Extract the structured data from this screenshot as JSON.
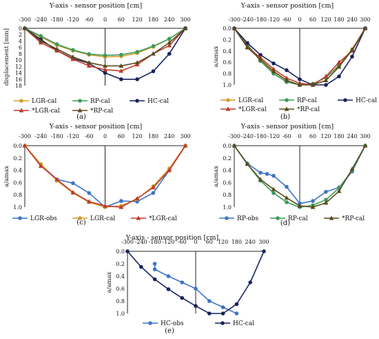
{
  "chart_data": [
    {
      "type": "line",
      "panel_label": "(a)",
      "title": "Y-axis - sensor position [cm]",
      "ylabel": "displacement [mm]",
      "xlabel": "",
      "x_ticks": [
        -300,
        -240,
        -180,
        -120,
        -60,
        0,
        60,
        120,
        180,
        240,
        300
      ],
      "y_ticks": [
        0,
        2,
        4,
        6,
        8,
        10,
        12,
        14,
        16,
        18
      ],
      "xlim": [
        -300,
        300
      ],
      "ylim": [
        0,
        18
      ],
      "y_inverted": true,
      "grid": false,
      "legend_position": "bottom",
      "series": [
        {
          "name": "LGR-cal",
          "color": "#d69d2b",
          "marker": "circle",
          "x": [
            -300,
            -240,
            -180,
            -120,
            -60,
            0,
            60,
            120,
            180,
            240,
            300
          ],
          "y": [
            0,
            2.7,
            5.3,
            7.0,
            8.3,
            9.0,
            8.8,
            7.8,
            5.8,
            3.3,
            0
          ]
        },
        {
          "name": "RP-cal",
          "color": "#3d9a5a",
          "marker": "circle",
          "x": [
            -300,
            -240,
            -180,
            -120,
            -60,
            0,
            60,
            120,
            180,
            240,
            300
          ],
          "y": [
            0,
            2.4,
            5.0,
            6.8,
            8.1,
            8.5,
            8.3,
            7.4,
            5.6,
            3.3,
            0
          ]
        },
        {
          "name": "HC-cal",
          "color": "#17235e",
          "marker": "circle",
          "x": [
            -300,
            -240,
            -180,
            -120,
            -60,
            0,
            60,
            120,
            180,
            240,
            300
          ],
          "y": [
            0,
            3.5,
            7.0,
            9.5,
            11.0,
            14.0,
            16.0,
            16.0,
            13.5,
            8.0,
            0
          ]
        },
        {
          "name": "*LGR-cal",
          "color": "#c0392b",
          "marker": "triangle",
          "x": [
            -300,
            -240,
            -180,
            -120,
            -60,
            0,
            60,
            120,
            180,
            240,
            300
          ],
          "y": [
            0,
            4.5,
            7.0,
            9.7,
            11.8,
            13.0,
            13.4,
            11.4,
            8.0,
            5.4,
            0
          ]
        },
        {
          "name": "*RP-cal",
          "color": "#5a4a1e",
          "marker": "triangle",
          "x": [
            -300,
            -240,
            -180,
            -120,
            -60,
            0,
            60,
            120,
            180,
            240,
            300
          ],
          "y": [
            0,
            4.0,
            6.5,
            9.0,
            10.8,
            11.8,
            11.8,
            10.8,
            8.0,
            4.5,
            0
          ]
        }
      ]
    },
    {
      "type": "line",
      "panel_label": "(b)",
      "title": "Y-axis - sensor position [cm]",
      "ylabel": "a/amax",
      "xlabel": "",
      "x_ticks": [
        -300,
        -240,
        -180,
        -120,
        -60,
        0,
        60,
        120,
        180,
        240,
        300
      ],
      "y_ticks": [
        0.0,
        0.2,
        0.4,
        0.6,
        0.8,
        1.0
      ],
      "xlim": [
        -300,
        300
      ],
      "ylim": [
        0,
        1.0
      ],
      "y_inverted": true,
      "grid": false,
      "legend_position": "bottom",
      "series": [
        {
          "name": "LGR-cal",
          "color": "#d69d2b",
          "marker": "circle",
          "x": [
            -300,
            -240,
            -180,
            -120,
            -60,
            0,
            60,
            120,
            180,
            240,
            300
          ],
          "y": [
            0,
            0.3,
            0.57,
            0.77,
            0.92,
            1.0,
            0.98,
            0.87,
            0.65,
            0.37,
            0
          ]
        },
        {
          "name": "RP-cal",
          "color": "#3d9a5a",
          "marker": "circle",
          "x": [
            -300,
            -240,
            -180,
            -120,
            -60,
            0,
            60,
            120,
            180,
            240,
            300
          ],
          "y": [
            0,
            0.28,
            0.58,
            0.8,
            0.95,
            1.0,
            0.98,
            0.87,
            0.66,
            0.39,
            0
          ]
        },
        {
          "name": "HC-cal",
          "color": "#17235e",
          "marker": "circle",
          "x": [
            -300,
            -240,
            -180,
            -120,
            -60,
            0,
            60,
            120,
            180,
            240,
            300
          ],
          "y": [
            0,
            0.26,
            0.47,
            0.62,
            0.74,
            0.9,
            1.0,
            1.0,
            0.85,
            0.5,
            0
          ]
        },
        {
          "name": "*LGR-cal",
          "color": "#c0392b",
          "marker": "triangle",
          "x": [
            -300,
            -240,
            -180,
            -120,
            -60,
            0,
            60,
            120,
            180,
            240,
            300
          ],
          "y": [
            0,
            0.33,
            0.52,
            0.72,
            0.88,
            0.97,
            1.0,
            0.85,
            0.6,
            0.4,
            0
          ]
        },
        {
          "name": "*RP-cal",
          "color": "#5a4a1e",
          "marker": "triangle",
          "x": [
            -300,
            -240,
            -180,
            -120,
            -60,
            0,
            60,
            120,
            180,
            240,
            300
          ],
          "y": [
            0,
            0.34,
            0.55,
            0.76,
            0.92,
            1.0,
            1.0,
            0.92,
            0.68,
            0.38,
            0
          ]
        }
      ]
    },
    {
      "type": "line",
      "panel_label": "(c)",
      "title": "Y-axis - sensor position [cm]",
      "ylabel": "a/amax",
      "xlabel": "",
      "x_ticks": [
        -300,
        -240,
        -180,
        -120,
        -60,
        0,
        60,
        120,
        180,
        240,
        300
      ],
      "y_ticks": [
        0.0,
        0.2,
        0.4,
        0.6,
        0.8,
        1.0
      ],
      "xlim": [
        -300,
        300
      ],
      "ylim": [
        0,
        1.0
      ],
      "y_inverted": true,
      "grid": false,
      "legend_position": "bottom",
      "series": [
        {
          "name": "LGR-obs",
          "color": "#3b74c4",
          "marker": "circle",
          "x": [
            -300,
            -240,
            -180,
            -120,
            -60,
            0,
            60,
            120,
            180,
            240,
            300
          ],
          "y": [
            0,
            0.31,
            0.55,
            0.61,
            0.77,
            1.0,
            0.9,
            0.91,
            0.77,
            0.4,
            0
          ]
        },
        {
          "name": "LGR-cal",
          "color": "#d69d2b",
          "marker": "circle",
          "x": [
            -300,
            -240,
            -180,
            -120,
            -60,
            0,
            60,
            120,
            180,
            240,
            300
          ],
          "y": [
            0,
            0.3,
            0.57,
            0.77,
            0.92,
            1.0,
            0.98,
            0.87,
            0.66,
            0.37,
            0
          ]
        },
        {
          "name": "*LGR-cal",
          "color": "#c0392b",
          "marker": "triangle",
          "x": [
            -300,
            -240,
            -180,
            -120,
            -60,
            0,
            60,
            120,
            180,
            240,
            300
          ],
          "y": [
            0,
            0.33,
            0.55,
            0.76,
            0.91,
            0.98,
            1.0,
            0.86,
            0.68,
            0.4,
            0
          ]
        }
      ]
    },
    {
      "type": "line",
      "panel_label": "(d)",
      "title": "Y-axis - sensor position [cm]",
      "ylabel": "a/amax",
      "xlabel": "",
      "x_ticks": [
        -300,
        -240,
        -180,
        -120,
        -60,
        0,
        60,
        120,
        180,
        240,
        300
      ],
      "y_ticks": [
        0.0,
        0.2,
        0.4,
        0.6,
        0.8,
        1.0
      ],
      "xlim": [
        -300,
        300
      ],
      "ylim": [
        0,
        1.0
      ],
      "y_inverted": true,
      "grid": false,
      "legend_position": "bottom",
      "series": [
        {
          "name": "RP-obs",
          "color": "#3b74c4",
          "marker": "circle",
          "x": [
            -300,
            -240,
            -180,
            -150,
            -120,
            -60,
            0,
            60,
            120,
            180,
            240,
            300
          ],
          "y": [
            0,
            0.29,
            0.44,
            0.46,
            0.49,
            0.67,
            0.94,
            0.9,
            0.75,
            0.68,
            0.42,
            0
          ]
        },
        {
          "name": "RP-cal",
          "color": "#3d9a5a",
          "marker": "circle",
          "x": [
            -300,
            -240,
            -180,
            -120,
            -60,
            0,
            60,
            120,
            180,
            240,
            300
          ],
          "y": [
            0,
            0.3,
            0.57,
            0.77,
            0.92,
            1.0,
            0.97,
            0.88,
            0.69,
            0.4,
            0
          ]
        },
        {
          "name": "*RP-cal",
          "color": "#5a4a1e",
          "marker": "triangle",
          "x": [
            -300,
            -240,
            -180,
            -120,
            -60,
            0,
            60,
            120,
            180,
            240,
            300
          ],
          "y": [
            0,
            0.3,
            0.55,
            0.71,
            0.85,
            0.98,
            1.0,
            0.93,
            0.74,
            0.38,
            0
          ]
        }
      ]
    },
    {
      "type": "line",
      "panel_label": "(e)",
      "title": "Y-axis - sensor position [cm]",
      "ylabel": "a/amax",
      "xlabel": "",
      "x_ticks": [
        -300,
        -240,
        -180,
        -120,
        -60,
        0,
        60,
        120,
        180,
        240,
        300
      ],
      "y_ticks": [
        0.0,
        0.2,
        0.4,
        0.6,
        0.8,
        1.0
      ],
      "xlim": [
        -300,
        300
      ],
      "ylim": [
        0,
        1.0
      ],
      "y_inverted": true,
      "grid": false,
      "legend_position": "bottom",
      "series": [
        {
          "name": "HC-obs",
          "color": "#3b74c4",
          "marker": "circle",
          "x": [
            -180,
            -180,
            -120,
            -60,
            0,
            60,
            120,
            180
          ],
          "y": [
            0.2,
            0.29,
            0.4,
            0.5,
            0.6,
            0.8,
            0.9,
            1.0
          ]
        },
        {
          "name": "HC-cal",
          "color": "#17235e",
          "marker": "circle",
          "x": [
            -300,
            -240,
            -180,
            -120,
            -60,
            0,
            60,
            120,
            180,
            240,
            300
          ],
          "y": [
            0,
            0.25,
            0.45,
            0.61,
            0.75,
            0.88,
            1.0,
            1.0,
            0.85,
            0.5,
            0
          ]
        }
      ]
    }
  ]
}
